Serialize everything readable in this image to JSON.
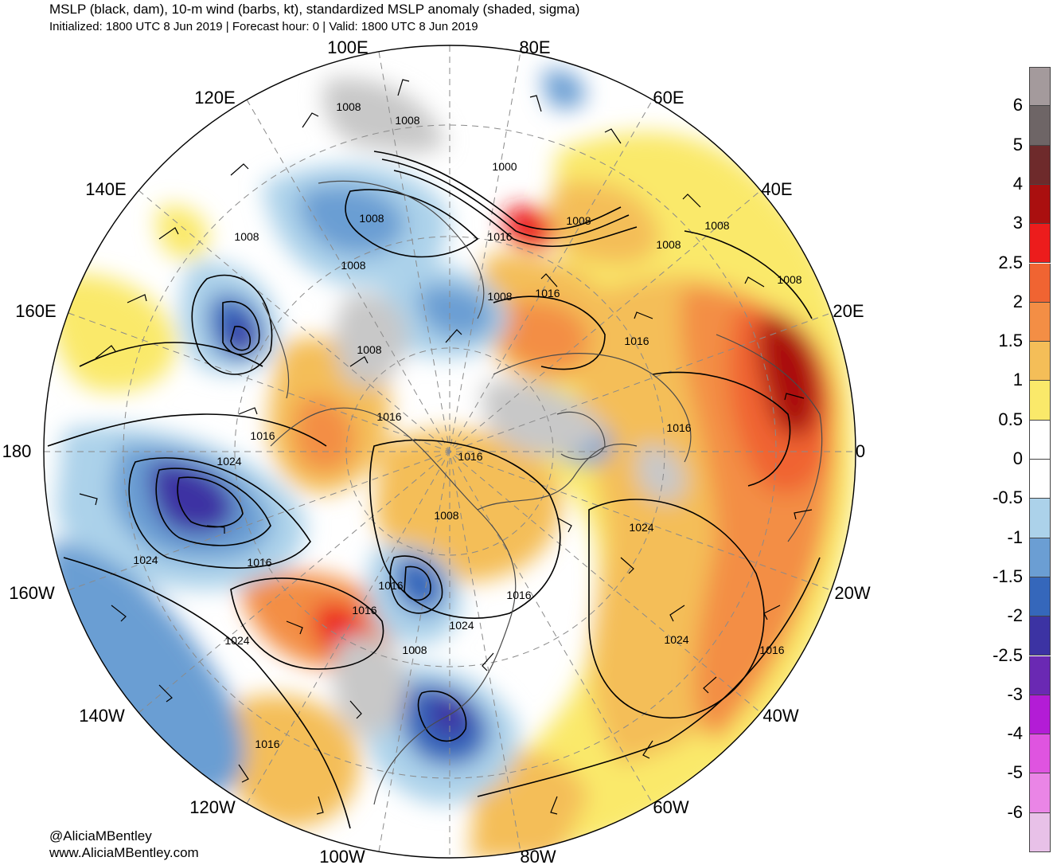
{
  "title": "MSLP (black, dam), 10-m wind (barbs, kt), standardized MSLP anomaly (shaded, sigma)",
  "subtitle": "Initialized: 1800 UTC 8 Jun 2019 | Forecast hour: 0 | Valid: 1800 UTC 8 Jun 2019",
  "longitude_labels": {
    "e100": "100E",
    "e80": "80E",
    "e120": "120E",
    "e60": "60E",
    "e140": "140E",
    "e40": "40E",
    "e160": "160E",
    "e20": "20E",
    "lon180": "180",
    "lon0": "0",
    "w160": "160W",
    "w20": "20W",
    "w140": "140W",
    "w40": "40W",
    "w120": "120W",
    "w60": "60W",
    "w100": "100W",
    "w80": "80W"
  },
  "pressure_labels": [
    "1008",
    "1008",
    "1000",
    "1008",
    "1008",
    "1016",
    "1008",
    "1008",
    "1008",
    "1008",
    "1008",
    "1008",
    "1016",
    "1008",
    "1016",
    "1016",
    "1016",
    "1016",
    "1016",
    "1024",
    "1008",
    "1024",
    "1024",
    "1016",
    "1016",
    "1016",
    "1016",
    "1024",
    "1024",
    "1024",
    "1008",
    "1016",
    "1016"
  ],
  "credits": {
    "handle": "@AliciaMBentley",
    "site": "www.AliciaMBentley.com"
  },
  "colorbar": {
    "labels": [
      "6",
      "5",
      "4",
      "3",
      "2.5",
      "2",
      "1.5",
      "1",
      "0.5",
      "0",
      "-0.5",
      "-1",
      "-1.5",
      "-2",
      "-2.5",
      "-3",
      "-4",
      "-5",
      "-6"
    ],
    "colors": [
      "#a49a9c",
      "#6e6566",
      "#6e2a2b",
      "#aa0f0f",
      "#ec1c1c",
      "#f06432",
      "#f38e45",
      "#f4be58",
      "#fae96a",
      "#ffffff",
      "#ffffff",
      "#acd2ea",
      "#6b9ed3",
      "#3567bb",
      "#3c33a3",
      "#6a29b3",
      "#b31cd6",
      "#df54e0",
      "#ea85e6",
      "#e8c1e8"
    ]
  }
}
